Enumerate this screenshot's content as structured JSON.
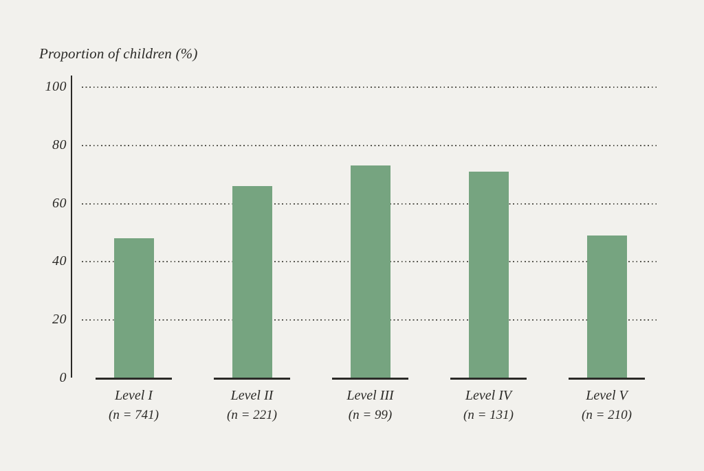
{
  "chart_data": {
    "type": "bar",
    "title": "Proportion of children (%)",
    "categories": [
      "Level I",
      "Level II",
      "Level III",
      "Level IV",
      "Level V"
    ],
    "sublabels": [
      "(n = 741)",
      "(n = 221)",
      "(n = 99)",
      "(n = 131)",
      "(n = 210)"
    ],
    "values": [
      48,
      66,
      73,
      71,
      49
    ],
    "xlabel": "",
    "ylabel": "Proportion of children (%)",
    "ylim": [
      0,
      100
    ],
    "yticks": [
      0,
      20,
      40,
      60,
      80,
      100
    ],
    "grid": "horizontal-dotted",
    "legend": "none",
    "colors": {
      "bar": "#76a480",
      "background": "#f2f1ed",
      "axis": "#2b2a27",
      "text": "#2b2a27",
      "grid_dots": "#57564f"
    }
  }
}
